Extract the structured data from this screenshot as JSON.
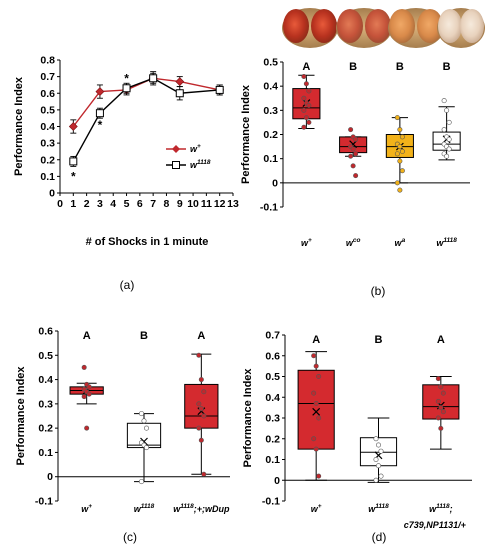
{
  "chart_data": [
    {
      "panel": "(a)",
      "type": "line",
      "xlabel": "# of Shocks in 1 minute",
      "ylabel": "Performance Index",
      "xlim": [
        0,
        13
      ],
      "ylim": [
        0,
        0.8
      ],
      "x_ticks": [
        "0",
        "1",
        "2",
        "3",
        "4",
        "5",
        "6",
        "7",
        "8",
        "9",
        "10",
        "11",
        "12",
        "13"
      ],
      "y_ticks": [
        "0",
        "0.1",
        "0.2",
        "0.3",
        "0.4",
        "0.5",
        "0.6",
        "0.7",
        "0.8"
      ],
      "legend_position": "right",
      "series": [
        {
          "name": "w+",
          "name_main": "w",
          "name_sup": "+",
          "color": "#c0282d",
          "marker": "diamond",
          "x": [
            1,
            3,
            5,
            7,
            9,
            12
          ],
          "y": [
            0.4,
            0.61,
            0.62,
            0.69,
            0.67,
            0.62
          ],
          "err": [
            0.04,
            0.04,
            0.03,
            0.03,
            0.03,
            0.03
          ]
        },
        {
          "name": "w1118",
          "name_main": "w",
          "name_sup": "1118",
          "color": "#000000",
          "marker": "square",
          "x": [
            1,
            3,
            5,
            7,
            9,
            12
          ],
          "y": [
            0.19,
            0.48,
            0.63,
            0.69,
            0.6,
            0.62
          ],
          "err": [
            0.03,
            0.03,
            0.03,
            0.04,
            0.04,
            0.03
          ]
        }
      ],
      "annotations": [
        {
          "text": "*",
          "x": 1,
          "y": 0.1
        },
        {
          "text": "*",
          "x": 3,
          "y": 0.41
        },
        {
          "text": "*",
          "x": 5,
          "y": 0.69
        }
      ]
    },
    {
      "panel": "(b)",
      "type": "box",
      "ylabel": "Performance Index",
      "ylim": [
        -0.1,
        0.5
      ],
      "y_ticks": [
        "-0.1",
        "0",
        "0.1",
        "0.2",
        "0.3",
        "0.4",
        "0.5"
      ],
      "categories": [
        {
          "main": "w",
          "sup": "+",
          "letter": "A",
          "fill": "#d42a2f",
          "q1": 0.265,
          "median": 0.31,
          "q3": 0.39,
          "min": 0.225,
          "max": 0.445,
          "mean": 0.33,
          "points": [
            0.44,
            0.41,
            0.38,
            0.35,
            0.33,
            0.32,
            0.3,
            0.27,
            0.25,
            0.23
          ]
        },
        {
          "main": "w",
          "sup": "co",
          "letter": "B",
          "fill": "#d42a2f",
          "q1": 0.125,
          "median": 0.15,
          "q3": 0.19,
          "min": 0.11,
          "max": 0.19,
          "mean": 0.16,
          "points": [
            0.22,
            0.19,
            0.18,
            0.15,
            0.14,
            0.12,
            0.11,
            0.07,
            0.03
          ]
        },
        {
          "main": "w",
          "sup": "a",
          "letter": "B",
          "fill": "#f2b21a",
          "q1": 0.105,
          "median": 0.15,
          "q3": 0.2,
          "min": 0.0,
          "max": 0.27,
          "mean": 0.15,
          "points": [
            0.27,
            0.22,
            0.19,
            0.16,
            0.15,
            0.13,
            0.12,
            0.09,
            0.05,
            0.0,
            -0.03
          ]
        },
        {
          "main": "w",
          "sup": "1118",
          "letter": "B",
          "fill": "#ffffff",
          "q1": 0.135,
          "median": 0.16,
          "q3": 0.21,
          "min": 0.095,
          "max": 0.315,
          "mean": 0.18,
          "points": [
            0.34,
            0.3,
            0.25,
            0.22,
            0.19,
            0.18,
            0.16,
            0.15,
            0.14,
            0.12,
            0.11
          ]
        }
      ]
    },
    {
      "panel": "(c)",
      "type": "box",
      "ylabel": "Performance Index",
      "ylim": [
        -0.1,
        0.6
      ],
      "y_ticks": [
        "-0.1",
        "0",
        "0.1",
        "0.2",
        "0.3",
        "0.4",
        "0.5",
        "0.6"
      ],
      "categories": [
        {
          "main": "w",
          "sup": "+",
          "after": "",
          "letter": "A",
          "fill": "#d42a2f",
          "q1": 0.34,
          "median": 0.355,
          "q3": 0.37,
          "min": 0.3,
          "max": 0.385,
          "mean": 0.355,
          "points": [
            0.45,
            0.38,
            0.37,
            0.36,
            0.35,
            0.34,
            0.33,
            0.2
          ]
        },
        {
          "main": "w",
          "sup": "1118",
          "after": "",
          "letter": "B",
          "fill": "#ffffff",
          "q1": 0.12,
          "median": 0.13,
          "q3": 0.22,
          "min": -0.02,
          "max": 0.26,
          "mean": 0.145,
          "points": [
            0.26,
            0.23,
            0.2,
            0.14,
            0.13,
            0.12,
            -0.02
          ]
        },
        {
          "main": "w",
          "sup": "1118",
          "after": ";+;wDup",
          "letter": "A",
          "fill": "#d42a2f",
          "q1": 0.2,
          "median": 0.25,
          "q3": 0.38,
          "min": 0.01,
          "max": 0.505,
          "mean": 0.27,
          "points": [
            0.5,
            0.4,
            0.35,
            0.3,
            0.28,
            0.25,
            0.2,
            0.15,
            0.01
          ]
        }
      ]
    },
    {
      "panel": "(d)",
      "type": "box",
      "ylabel": "Performance Index",
      "ylim": [
        -0.1,
        0.7
      ],
      "y_ticks": [
        "-0.1",
        "0",
        "0.1",
        "0.2",
        "0.3",
        "0.4",
        "0.5",
        "0.6",
        "0.7"
      ],
      "categories": [
        {
          "main": "w",
          "sup": "+",
          "after": "",
          "line2": "",
          "letter": "A",
          "fill": "#d42a2f",
          "q1": 0.15,
          "median": 0.37,
          "q3": 0.53,
          "min": 0.0,
          "max": 0.62,
          "mean": 0.33,
          "points": [
            0.6,
            0.55,
            0.5,
            0.42,
            0.37,
            0.3,
            0.2,
            0.15,
            0.02
          ]
        },
        {
          "main": "w",
          "sup": "1118",
          "after": "",
          "line2": "",
          "letter": "B",
          "fill": "#ffffff",
          "q1": 0.07,
          "median": 0.135,
          "q3": 0.205,
          "min": -0.01,
          "max": 0.3,
          "mean": 0.12,
          "points": [
            0.2,
            0.17,
            0.14,
            0.1,
            0.07,
            0.02,
            0.0
          ]
        },
        {
          "main": "w",
          "sup": "1118",
          "after": ";",
          "line2": "c739,NP1131/+",
          "letter": "A",
          "fill": "#d42a2f",
          "q1": 0.295,
          "median": 0.355,
          "q3": 0.46,
          "min": 0.15,
          "max": 0.5,
          "mean": 0.36,
          "points": [
            0.49,
            0.45,
            0.42,
            0.38,
            0.35,
            0.33,
            0.3,
            0.25
          ]
        }
      ]
    }
  ],
  "panel_labels": {
    "a": "(a)",
    "b": "(b)",
    "c": "(c)",
    "d": "(d)"
  },
  "legend_labels": {
    "wplus_main": "w",
    "wplus_sup": "+",
    "w1118_main": "w",
    "w1118_sup": "1118"
  },
  "eye_photos": [
    "red eye",
    "pale red eye",
    "orange eye",
    "white eye"
  ]
}
